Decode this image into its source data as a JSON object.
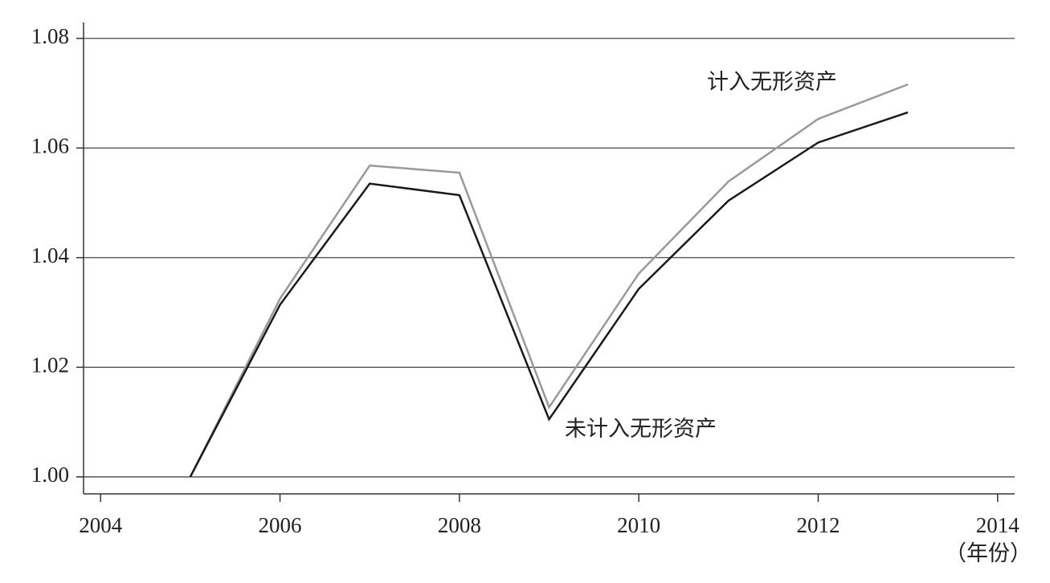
{
  "chart_data": {
    "type": "line",
    "x": [
      2005,
      2006,
      2007,
      2008,
      2009,
      2010,
      2011,
      2012,
      2013
    ],
    "series": [
      {
        "name": "计入无形资产",
        "color": "#999999",
        "values": [
          1.0,
          1.0325,
          1.0568,
          1.0555,
          1.0127,
          1.0371,
          1.0539,
          1.0653,
          1.0716
        ]
      },
      {
        "name": "未计入无形资产",
        "color": "#1a1a1a",
        "values": [
          1.0,
          1.0314,
          1.0535,
          1.0514,
          1.0105,
          1.0343,
          1.0504,
          1.061,
          1.0665
        ]
      }
    ],
    "xlabel": "（年份）",
    "xlim": [
      2003.81,
      2014.19
    ],
    "xticks": [
      2004,
      2006,
      2008,
      2010,
      2012,
      2014
    ],
    "ylim": [
      0.9969,
      1.0829
    ],
    "yticks": [
      {
        "value": 1.0,
        "label": "1.00"
      },
      {
        "value": 1.02,
        "label": "1.02"
      },
      {
        "value": 1.04,
        "label": "1.04"
      },
      {
        "value": 1.06,
        "label": "1.06"
      },
      {
        "value": 1.08,
        "label": "1.08"
      }
    ],
    "grid": true
  }
}
